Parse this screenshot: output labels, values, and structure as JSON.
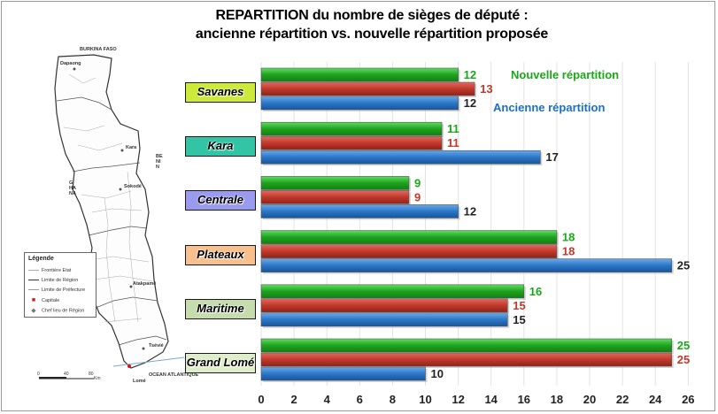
{
  "title": {
    "line1": "REPARTITION du nombre de sièges de député :",
    "line2": "ancienne répartition vs. nouvelle répartition proposée"
  },
  "colors": {
    "new": "#1aa81a",
    "proposed": "#c0392b",
    "old": "#1b6fc4",
    "label_new": "#1aa81a",
    "label_proposed": "#c0392b",
    "label_old": "#222222"
  },
  "map": {
    "neighbors": [
      "BURKINA FASO",
      "BENIN",
      "GHANA"
    ],
    "sea": "OCEAN ATLANTIQUE",
    "cities": [
      "Dapaong",
      "Kara",
      "Sokodé",
      "Atakpamé",
      "Lomé",
      "Tsévié"
    ],
    "legend": {
      "title": "Légende",
      "items": [
        "Frontière Etat",
        "Limite de Région",
        "Limite de Préfecture",
        "Capitale",
        "Chef lieu de Région"
      ]
    },
    "scale": [
      "0",
      "40",
      "80"
    ],
    "scale_unit": "Km"
  },
  "chart_data": {
    "type": "bar",
    "orientation": "horizontal",
    "categories": [
      "Savanes",
      "Kara",
      "Centrale",
      "Plateaux",
      "Maritime",
      "Grand Lomé"
    ],
    "category_colors": [
      "#cdea3a",
      "#33c4a6",
      "#9a9aee",
      "#f7c08e",
      "#c6dcae",
      "#dfeeca"
    ],
    "series": [
      {
        "name": "Nouvelle répartition",
        "values": [
          12,
          11,
          9,
          18,
          16,
          25
        ]
      },
      {
        "name": "",
        "values": [
          13,
          11,
          9,
          18,
          15,
          25
        ]
      },
      {
        "name": "Ancienne répartition",
        "values": [
          12,
          17,
          12,
          25,
          15,
          10
        ]
      }
    ],
    "x_ticks": [
      "0",
      "2",
      "4",
      "6",
      "8",
      "10",
      "12",
      "14",
      "16",
      "18",
      "20",
      "22",
      "24",
      "26"
    ],
    "xlim": [
      0,
      26
    ],
    "grid": true,
    "legend_placement": "top-right"
  }
}
